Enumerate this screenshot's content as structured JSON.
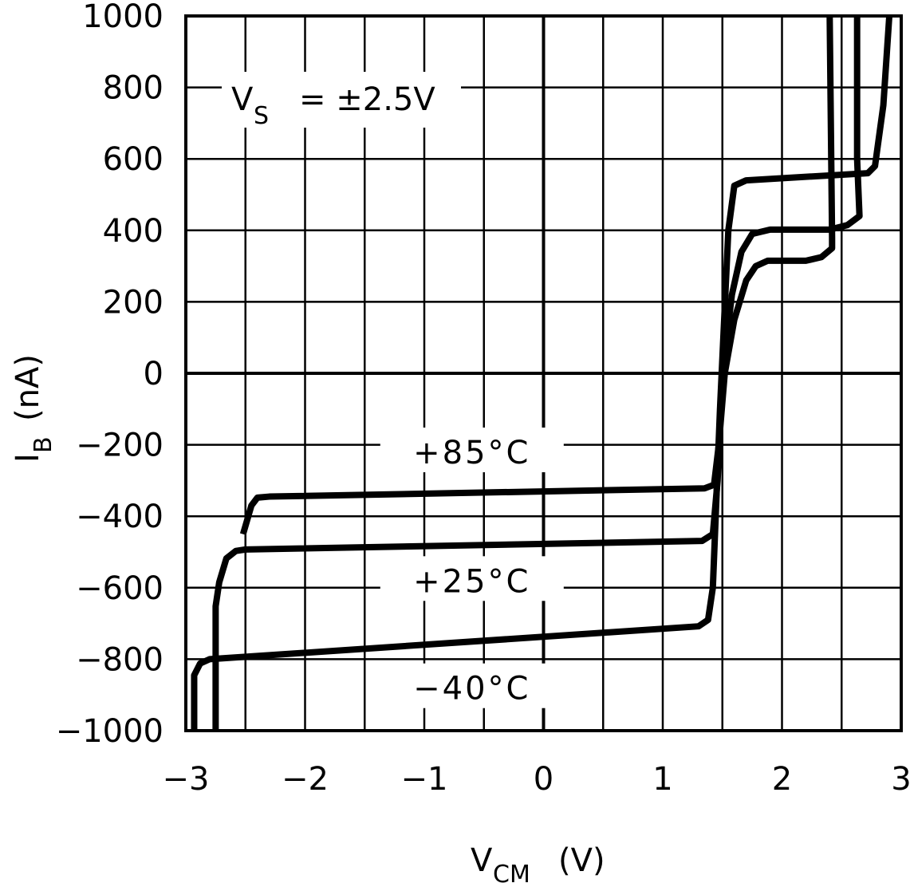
{
  "chart_data": {
    "type": "line",
    "title": "",
    "xlabel": "V",
    "xlabel_sub": "CM",
    "xlabel_unit": "(V)",
    "ylabel": "I",
    "ylabel_sub": "B",
    "ylabel_unit": "(nA)",
    "xlim": [
      -3,
      3
    ],
    "ylim": [
      -1000,
      1000
    ],
    "grid": true,
    "x_ticks": [
      -3,
      -2,
      -1,
      0,
      1,
      2,
      3
    ],
    "x_tick_labels": [
      "−3",
      "−2",
      "−1",
      "0",
      "1",
      "2",
      "3"
    ],
    "y_ticks": [
      1000,
      800,
      600,
      400,
      200,
      0,
      -200,
      -400,
      -600,
      -800,
      -1000
    ],
    "y_tick_labels": [
      "1000",
      "800",
      "600",
      "400",
      "200",
      "0",
      "−200",
      "−400",
      "−600",
      "−800",
      "−1000"
    ],
    "annotation": {
      "main": "V",
      "sub": "S",
      "rest": "= ±2.5V"
    },
    "series": [
      {
        "name": "+85°C",
        "label": "+85°C",
        "points": [
          [
            -2.52,
            -450
          ],
          [
            -2.45,
            -370
          ],
          [
            -2.4,
            -348
          ],
          [
            -2.3,
            -345
          ],
          [
            1.35,
            -322
          ],
          [
            1.43,
            -312
          ],
          [
            1.47,
            -200
          ],
          [
            1.52,
            0
          ],
          [
            1.6,
            150
          ],
          [
            1.7,
            260
          ],
          [
            1.78,
            300
          ],
          [
            1.88,
            315
          ],
          [
            2.2,
            315
          ],
          [
            2.33,
            325
          ],
          [
            2.42,
            350
          ],
          [
            2.42,
            380
          ],
          [
            2.4,
            1000
          ]
        ]
      },
      {
        "name": "+25°C",
        "label": "+25°C",
        "points": [
          [
            -2.75,
            -1000
          ],
          [
            -2.75,
            -652
          ],
          [
            -2.72,
            -585
          ],
          [
            -2.66,
            -518
          ],
          [
            -2.58,
            -497
          ],
          [
            -2.5,
            -493
          ],
          [
            1.33,
            -469
          ],
          [
            1.42,
            -450
          ],
          [
            1.46,
            -300
          ],
          [
            1.5,
            0
          ],
          [
            1.58,
            220
          ],
          [
            1.66,
            340
          ],
          [
            1.75,
            390
          ],
          [
            1.9,
            402
          ],
          [
            2.4,
            402
          ],
          [
            2.55,
            415
          ],
          [
            2.65,
            440
          ],
          [
            2.63,
            600
          ],
          [
            2.63,
            1000
          ]
        ]
      },
      {
        "name": "-40°C",
        "label": "−40°C",
        "points": [
          [
            -2.93,
            -1000
          ],
          [
            -2.93,
            -845
          ],
          [
            -2.88,
            -812
          ],
          [
            -2.8,
            -800
          ],
          [
            1.3,
            -708
          ],
          [
            1.38,
            -690
          ],
          [
            1.42,
            -600
          ],
          [
            1.48,
            -100
          ],
          [
            1.55,
            400
          ],
          [
            1.6,
            525
          ],
          [
            1.7,
            540
          ],
          [
            2.72,
            560
          ],
          [
            2.78,
            580
          ],
          [
            2.85,
            750
          ],
          [
            2.9,
            1000
          ]
        ]
      }
    ],
    "label_positions": [
      [
        -0.6,
        -230
      ],
      [
        -0.6,
        -590
      ],
      [
        -0.6,
        -890
      ]
    ]
  }
}
